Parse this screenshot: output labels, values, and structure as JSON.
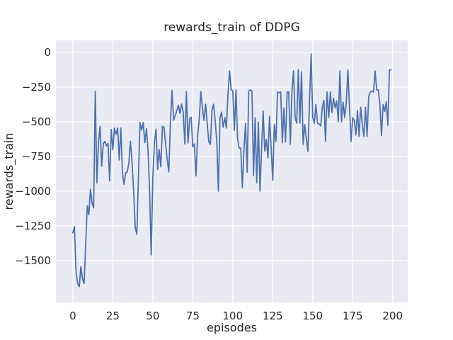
{
  "figure": {
    "title": "rewards_train of DDPG",
    "xlabel": "episodes",
    "ylabel": "rewards_train"
  },
  "chart_data": {
    "type": "line",
    "title": "rewards_train of DDPG",
    "xlabel": "episodes",
    "ylabel": "rewards_train",
    "x_ticks": [
      0,
      25,
      50,
      75,
      100,
      125,
      150,
      175,
      200
    ],
    "y_ticks": [
      0,
      -250,
      -500,
      -750,
      -1000,
      -1250,
      -1500
    ],
    "xlim": [
      -10.6,
      209.4
    ],
    "ylim": [
      -1802,
      87
    ],
    "grid": true,
    "legend": false,
    "line_color": "#4C72B0",
    "background_color": "#EAEAF2",
    "grid_color": "#FFFFFF",
    "text_color": "#262626",
    "series": [
      {
        "name": "rewards_train",
        "x_start": 0,
        "x_step": 1,
        "values": [
          -1300,
          -1255,
          -1585,
          -1665,
          -1688,
          -1545,
          -1630,
          -1665,
          -1395,
          -1105,
          -1170,
          -985,
          -1086,
          -1120,
          -280,
          -940,
          -650,
          -532,
          -821,
          -658,
          -641,
          -674,
          -656,
          -926,
          -555,
          -700,
          -545,
          -590,
          -545,
          -775,
          -545,
          -870,
          -950,
          -870,
          -860,
          -800,
          -640,
          -790,
          -1000,
          -1263,
          -1310,
          -900,
          -505,
          -560,
          -505,
          -650,
          -550,
          -705,
          -1000,
          -1460,
          -900,
          -650,
          -553,
          -843,
          -700,
          -825,
          -532,
          -540,
          -660,
          -771,
          -861,
          -500,
          -273,
          -488,
          -455,
          -420,
          -380,
          -440,
          -372,
          -430,
          -660,
          -281,
          -652,
          -480,
          -467,
          -680,
          -660,
          -890,
          -600,
          -490,
          -281,
          -397,
          -490,
          -373,
          -510,
          -645,
          -662,
          -413,
          -373,
          -490,
          -645,
          -1000,
          -469,
          -430,
          -540,
          -470,
          -545,
          -300,
          -133,
          -270,
          -275,
          -562,
          -270,
          -617,
          -690,
          -690,
          -975,
          -700,
          -513,
          -863,
          -278,
          -270,
          -278,
          -888,
          -469,
          -938,
          -500,
          -1000,
          -700,
          -422,
          -711,
          -627,
          -760,
          -460,
          -690,
          -920,
          -520,
          -640,
          -285,
          -290,
          -285,
          -650,
          -400,
          -645,
          -285,
          -285,
          -662,
          -285,
          -133,
          -470,
          -510,
          -125,
          -510,
          -140,
          -662,
          -520,
          -620,
          -713,
          -350,
          -10,
          -469,
          -510,
          -375,
          -510,
          -515,
          -530,
          -395,
          -345,
          -640,
          -285,
          -469,
          -285,
          -435,
          -330,
          -400,
          -350,
          -500,
          -133,
          -500,
          -358,
          -469,
          -358,
          -127,
          -400,
          -640,
          -470,
          -490,
          -595,
          -420,
          -605,
          -395,
          -515,
          -605,
          -395,
          -605,
          -320,
          -285,
          -280,
          -285,
          -133,
          -270,
          -270,
          -375,
          -600,
          -375,
          -425,
          -355,
          -525,
          -127,
          -125
        ]
      }
    ]
  }
}
